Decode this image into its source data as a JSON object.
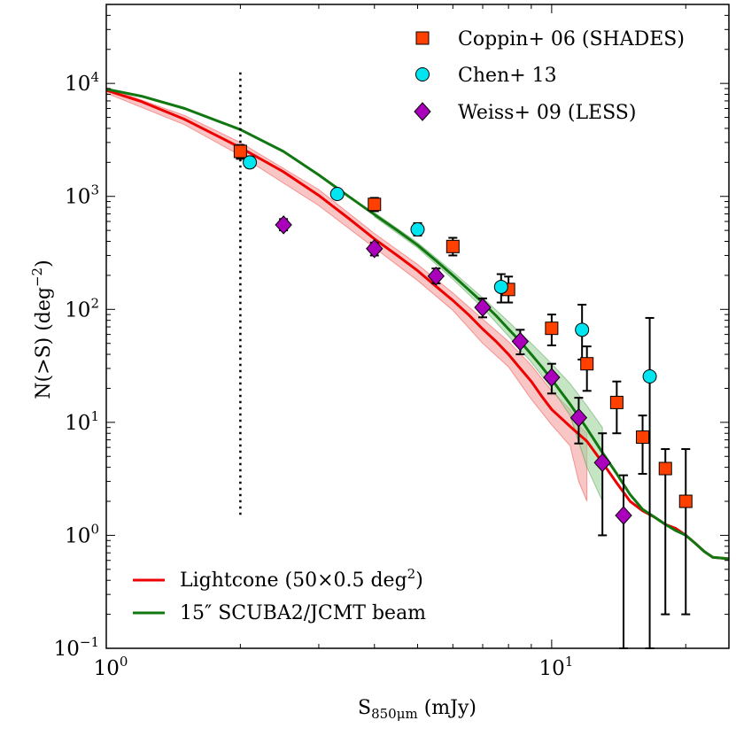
{
  "chart_data": {
    "type": "scatter",
    "xscale": "log",
    "yscale": "log",
    "xlim": [
      1,
      25
    ],
    "ylim": [
      0.1,
      50000
    ],
    "xlabel": {
      "main": "S",
      "sub": "850μm",
      "unit": " (mJy)"
    },
    "ylabel": {
      "main": "N(>S) (deg",
      "sup": "−2",
      "end": ")"
    },
    "x_ticks": [
      {
        "value": 1,
        "base": "10",
        "exp": "0"
      },
      {
        "value": 10,
        "base": "10",
        "exp": "1"
      }
    ],
    "y_ticks": [
      {
        "value": 0.1,
        "base": "10",
        "exp": "−1"
      },
      {
        "value": 1,
        "base": "10",
        "exp": "0"
      },
      {
        "value": 10,
        "base": "10",
        "exp": "1"
      },
      {
        "value": 100,
        "base": "10",
        "exp": "2"
      },
      {
        "value": 1000,
        "base": "10",
        "exp": "3"
      },
      {
        "value": 10000,
        "base": "10",
        "exp": "4"
      }
    ],
    "vline": {
      "x": 2.0,
      "ymin": 1.4,
      "ymax": 12500,
      "style": "dotted"
    },
    "lines": [
      {
        "name": "Lightcone",
        "label": {
          "pre": "Lightcone (50×0.5 deg",
          "sup": "2",
          "post": ")"
        },
        "color": "#ee0000",
        "band_color": "#f5a0a0",
        "x": [
          1,
          1.2,
          1.5,
          2,
          2.5,
          3,
          3.5,
          4,
          4.5,
          5,
          5.5,
          6,
          6.5,
          7,
          7.5,
          8,
          8.5,
          9,
          9.5,
          10,
          11,
          12,
          13,
          14,
          15,
          16,
          17,
          18,
          19,
          20,
          21,
          22,
          23,
          25
        ],
        "y": [
          8700,
          6900,
          4800,
          2700,
          1650,
          1020,
          640,
          420,
          300,
          220,
          160,
          120,
          90,
          67,
          52,
          40,
          30,
          23,
          17,
          13,
          9.2,
          6.8,
          4.4,
          2.9,
          2.0,
          1.65,
          1.45,
          1.25,
          1.15,
          1.0,
          0.85,
          0.72,
          0.64,
          0.62
        ],
        "band_x": [
          1,
          1.5,
          2,
          3,
          4,
          5,
          6,
          7,
          8,
          9,
          10,
          11,
          11.5,
          12
        ],
        "band_lo": [
          8200,
          4300,
          2300,
          830,
          350,
          180,
          98,
          50,
          31,
          16,
          9.5,
          6.2,
          3.0,
          2.0
        ],
        "band_hi": [
          9200,
          5200,
          3000,
          1150,
          470,
          250,
          140,
          82,
          52,
          32,
          19,
          13,
          9.5,
          8.0
        ]
      },
      {
        "name": "Beam",
        "label": {
          "pre": "15″ SCUBA2/JCMT beam",
          "sup": "",
          "post": ""
        },
        "color": "#117711",
        "band_color": "#9fd49f",
        "x": [
          1,
          1.2,
          1.5,
          2,
          2.5,
          3,
          3.5,
          4,
          4.5,
          5,
          5.5,
          6,
          6.5,
          7,
          7.5,
          8,
          8.5,
          9,
          9.5,
          10,
          11,
          12,
          13,
          14,
          15,
          16,
          17,
          18,
          19,
          20,
          21,
          22,
          23,
          25
        ],
        "y": [
          8900,
          7700,
          6000,
          3900,
          2500,
          1550,
          1000,
          690,
          500,
          370,
          270,
          200,
          150,
          115,
          88,
          67,
          52,
          40,
          31,
          24,
          14.5,
          8.8,
          5.4,
          3.5,
          2.3,
          1.7,
          1.45,
          1.25,
          1.1,
          1.0,
          0.85,
          0.72,
          0.64,
          0.62
        ],
        "band_x": [
          4,
          5,
          6,
          7,
          8,
          9,
          10,
          11,
          12,
          13
        ],
        "band_lo": [
          660,
          350,
          185,
          103,
          58,
          34,
          20,
          11.5,
          4.0,
          2.0
        ],
        "band_hi": [
          720,
          390,
          215,
          127,
          78,
          50,
          33,
          22,
          14,
          9.0
        ]
      }
    ],
    "series": [
      {
        "name": "Coppin+ 06 (SHADES)",
        "marker": "square",
        "color": "#ff4000",
        "points": [
          {
            "x": 2.0,
            "y": 2500,
            "lo": 2150,
            "hi": 2850
          },
          {
            "x": 4.0,
            "y": 850,
            "lo": 740,
            "hi": 970
          },
          {
            "x": 6.0,
            "y": 360,
            "lo": 300,
            "hi": 430
          },
          {
            "x": 8.0,
            "y": 150,
            "lo": 115,
            "hi": 195
          },
          {
            "x": 10.0,
            "y": 68,
            "lo": 48,
            "hi": 90
          },
          {
            "x": 12.0,
            "y": 33,
            "lo": 19,
            "hi": 47
          },
          {
            "x": 14.0,
            "y": 15,
            "lo": 8,
            "hi": 23
          },
          {
            "x": 16.0,
            "y": 7.4,
            "lo": 3.5,
            "hi": 11.5
          },
          {
            "x": 18.0,
            "y": 3.9,
            "lo": 0.2,
            "hi": 5.8
          },
          {
            "x": 20.0,
            "y": 2.0,
            "lo": 0.2,
            "hi": 5.8
          }
        ]
      },
      {
        "name": "Chen+ 13",
        "marker": "circle",
        "color": "#00e5f0",
        "points": [
          {
            "x": 2.1,
            "y": 2000,
            "lo": 1800,
            "hi": 2250
          },
          {
            "x": 3.3,
            "y": 1050,
            "lo": 960,
            "hi": 1150
          },
          {
            "x": 5.0,
            "y": 510,
            "lo": 450,
            "hi": 580
          },
          {
            "x": 7.7,
            "y": 158,
            "lo": 115,
            "hi": 205
          },
          {
            "x": 11.7,
            "y": 66,
            "lo": 36,
            "hi": 110
          },
          {
            "x": 16.6,
            "y": 25.5,
            "lo": 0.1,
            "hi": 84
          }
        ]
      },
      {
        "name": "Weiss+ 09 (LESS)",
        "marker": "diamond",
        "color": "#aa00bb",
        "points": [
          {
            "x": 2.5,
            "y": 560,
            "lo": 500,
            "hi": 630
          },
          {
            "x": 4.0,
            "y": 345,
            "lo": 300,
            "hi": 390
          },
          {
            "x": 5.5,
            "y": 197,
            "lo": 170,
            "hi": 230
          },
          {
            "x": 7.0,
            "y": 104,
            "lo": 85,
            "hi": 125
          },
          {
            "x": 8.5,
            "y": 52,
            "lo": 40,
            "hi": 66
          },
          {
            "x": 10.0,
            "y": 25,
            "lo": 18,
            "hi": 33
          },
          {
            "x": 11.5,
            "y": 11,
            "lo": 6.5,
            "hi": 16.5
          },
          {
            "x": 13.0,
            "y": 4.4,
            "lo": 1.0,
            "hi": 8.0
          },
          {
            "x": 14.5,
            "y": 1.5,
            "lo": 0.1,
            "hi": 3.4
          }
        ]
      }
    ],
    "legend_top": "top-right",
    "legend_bottom": "bottom-left"
  }
}
